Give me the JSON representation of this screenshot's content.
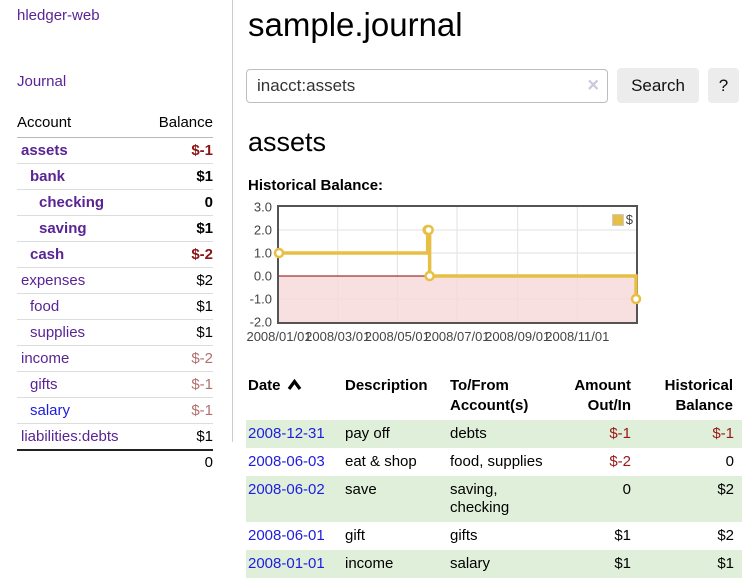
{
  "app": {
    "brand": "hledger-web",
    "title": "sample.journal"
  },
  "nav": {
    "journal_label": "Journal"
  },
  "sidebar": {
    "header": {
      "account": "Account",
      "balance": "Balance"
    },
    "accounts": [
      {
        "name": "assets",
        "indent": 1,
        "bold": true,
        "balance": "$-1",
        "neg": "strong"
      },
      {
        "name": "bank",
        "indent": 2,
        "bold": true,
        "balance": "$1",
        "neg": "none"
      },
      {
        "name": "checking",
        "indent": 3,
        "bold": true,
        "balance": "0",
        "neg": "none"
      },
      {
        "name": "saving",
        "indent": 3,
        "bold": true,
        "balance": "$1",
        "neg": "none"
      },
      {
        "name": "cash",
        "indent": 2,
        "bold": true,
        "balance": "$-2",
        "neg": "strong"
      },
      {
        "name": "expenses",
        "indent": 1,
        "bold": false,
        "balance": "$2",
        "neg": "none"
      },
      {
        "name": "food",
        "indent": 2,
        "bold": false,
        "balance": "$1",
        "neg": "none"
      },
      {
        "name": "supplies",
        "indent": 2,
        "bold": false,
        "balance": "$1",
        "neg": "none"
      },
      {
        "name": "income",
        "indent": 1,
        "bold": false,
        "balance": "$-2",
        "neg": "soft"
      },
      {
        "name": "gifts",
        "indent": 2,
        "bold": false,
        "balance": "$-1",
        "neg": "soft"
      },
      {
        "name": "salary",
        "indent": 2,
        "bold": false,
        "balance": "$-1",
        "neg": "soft",
        "link_style": "blue"
      },
      {
        "name": "liabilities:debts",
        "indent": 1,
        "bold": false,
        "balance": "$1",
        "neg": "none"
      }
    ],
    "total": "0"
  },
  "search": {
    "value": "inacct:assets",
    "clear_label": "×",
    "button_label": "Search",
    "help_label": "?"
  },
  "account_page": {
    "heading": "assets",
    "chart_title": "Historical Balance:"
  },
  "chart_data": {
    "type": "line",
    "style": "steps",
    "title": "Historical Balance:",
    "xlabel": "",
    "ylabel": "",
    "ylim": [
      -2.0,
      3.0
    ],
    "yticks": [
      "3.0",
      "2.0",
      "1.0",
      "0.0",
      "-1.0",
      "-2.0"
    ],
    "xticks": [
      "2008/01/01",
      "2008/03/01",
      "2008/05/01",
      "2008/07/01",
      "2008/09/01",
      "2008/11/01"
    ],
    "x_range": [
      "2008-01-01",
      "2008-12-31"
    ],
    "grid": true,
    "legend_position": "top-right",
    "negative_region_color": "#f8d8d8",
    "zero_line_color": "#8b0000",
    "series": [
      {
        "name": "$",
        "color": "#e8bf45",
        "points": [
          [
            "2008-01-01",
            1
          ],
          [
            "2008-06-01",
            2
          ],
          [
            "2008-06-02",
            2
          ],
          [
            "2008-06-03",
            0
          ],
          [
            "2008-12-31",
            -1
          ]
        ]
      }
    ]
  },
  "register": {
    "columns": [
      {
        "key": "date",
        "label": "Date",
        "align": "left",
        "sorted": true
      },
      {
        "key": "description",
        "label": "Description",
        "align": "left",
        "sorted": false
      },
      {
        "key": "accounts",
        "label": "To/From\nAccount(s)",
        "align": "left",
        "sorted": false
      },
      {
        "key": "amount",
        "label": "Amount\nOut/In",
        "align": "right",
        "sorted": false
      },
      {
        "key": "balance",
        "label": "Historical\nBalance",
        "align": "right",
        "sorted": false
      }
    ],
    "rows": [
      {
        "date": "2008-12-31",
        "description": "pay off",
        "accounts": "debts",
        "amount": "$-1",
        "balance": "$-1"
      },
      {
        "date": "2008-06-03",
        "description": "eat & shop",
        "accounts": "food, supplies",
        "amount": "$-2",
        "balance": "0"
      },
      {
        "date": "2008-06-02",
        "description": "save",
        "accounts": "saving, checking",
        "amount": "0",
        "balance": "$2"
      },
      {
        "date": "2008-06-01",
        "description": "gift",
        "accounts": "gifts",
        "amount": "$1",
        "balance": "$2"
      },
      {
        "date": "2008-01-01",
        "description": "income",
        "accounts": "salary",
        "amount": "$1",
        "balance": "$1"
      }
    ]
  }
}
